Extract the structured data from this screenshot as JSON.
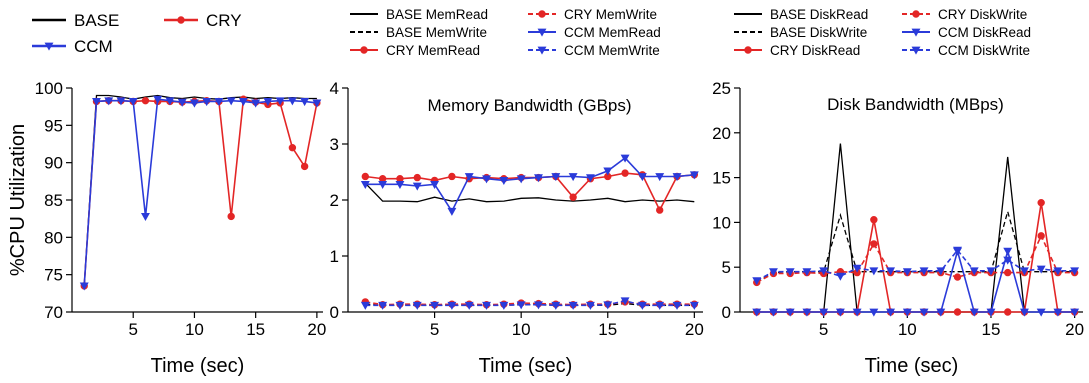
{
  "chart_data": [
    {
      "type": "line",
      "title": "",
      "xlabel": "Time (sec)",
      "ylabel": "%CPU Utilization",
      "xlim": [
        0,
        20.5
      ],
      "ylim": [
        70,
        100
      ],
      "xticks": [
        5,
        10,
        15,
        20
      ],
      "yticks": [
        70,
        75,
        80,
        85,
        90,
        95,
        100
      ],
      "legend_position": "top",
      "x": [
        1,
        2,
        3,
        4,
        5,
        6,
        7,
        8,
        9,
        10,
        11,
        12,
        13,
        14,
        15,
        16,
        17,
        18,
        19,
        20
      ],
      "series": [
        {
          "name": "BASE",
          "color": "#000000",
          "dash": "solid",
          "marker": "none",
          "values": [
            73.5,
            99,
            99,
            98.8,
            98.5,
            98.8,
            99,
            98.7,
            98.6,
            98.8,
            98.6,
            98.5,
            98.7,
            98.8,
            98.6,
            98.7,
            98.6,
            98.7,
            98.6,
            98.6
          ]
        },
        {
          "name": "CRY",
          "color": "#e32626",
          "dash": "solid",
          "marker": "circle",
          "values": [
            73.5,
            98.2,
            98.3,
            98.3,
            98.2,
            98.3,
            98.2,
            98.2,
            98.1,
            98.2,
            98.3,
            98.2,
            82.8,
            98.5,
            98.1,
            97.8,
            98,
            92,
            89.5,
            98
          ]
        },
        {
          "name": "CCM",
          "color": "#2b3bd9",
          "dash": "solid",
          "marker": "triangle",
          "values": [
            73.5,
            98.2,
            98.3,
            98.3,
            98.2,
            82.8,
            98.5,
            98.3,
            98.1,
            98,
            98.2,
            98.2,
            98.3,
            98.2,
            98,
            98.2,
            98.3,
            98.3,
            98.2,
            98
          ]
        }
      ]
    },
    {
      "type": "line",
      "title": "Memory Bandwidth (GBps)",
      "xlabel": "Time (sec)",
      "ylabel": "",
      "xlim": [
        0,
        20.5
      ],
      "ylim": [
        0,
        4
      ],
      "xticks": [
        5,
        10,
        15,
        20
      ],
      "yticks": [
        0,
        1,
        2,
        3,
        4
      ],
      "legend_position": "top",
      "x": [
        1,
        2,
        3,
        4,
        5,
        6,
        7,
        8,
        9,
        10,
        11,
        12,
        13,
        14,
        15,
        16,
        17,
        18,
        19,
        20
      ],
      "series": [
        {
          "name": "BASE MemRead",
          "color": "#000000",
          "dash": "solid",
          "marker": "none",
          "values": [
            2.3,
            1.98,
            1.98,
            1.97,
            2.05,
            1.98,
            2.02,
            1.97,
            1.98,
            2.03,
            2.04,
            2,
            1.98,
            2,
            2.03,
            1.97,
            2,
            1.98,
            2,
            1.97
          ]
        },
        {
          "name": "BASE MemWrite",
          "color": "#000000",
          "dash": "dashed",
          "marker": "none",
          "values": [
            0.14,
            0.12,
            0.12,
            0.12,
            0.12,
            0.12,
            0.12,
            0.12,
            0.12,
            0.13,
            0.13,
            0.12,
            0.12,
            0.12,
            0.12,
            0.15,
            0.12,
            0.12,
            0.12,
            0.12
          ]
        },
        {
          "name": "CRY MemRead",
          "color": "#e32626",
          "dash": "solid",
          "marker": "circle",
          "values": [
            2.42,
            2.38,
            2.38,
            2.4,
            2.35,
            2.42,
            2.38,
            2.4,
            2.38,
            2.4,
            2.4,
            2.42,
            2.05,
            2.38,
            2.42,
            2.48,
            2.45,
            1.82,
            2.42,
            2.45
          ]
        },
        {
          "name": "CRY MemWrite",
          "color": "#e32626",
          "dash": "dashed",
          "marker": "circle",
          "values": [
            0.18,
            0.13,
            0.14,
            0.14,
            0.13,
            0.14,
            0.14,
            0.13,
            0.14,
            0.16,
            0.15,
            0.14,
            0.13,
            0.14,
            0.14,
            0.18,
            0.14,
            0.14,
            0.14,
            0.14
          ]
        },
        {
          "name": "CCM MemRead",
          "color": "#2b3bd9",
          "dash": "solid",
          "marker": "triangle",
          "values": [
            2.28,
            2.28,
            2.28,
            2.25,
            2.28,
            1.8,
            2.42,
            2.38,
            2.35,
            2.38,
            2.4,
            2.42,
            2.42,
            2.4,
            2.52,
            2.75,
            2.42,
            2.42,
            2.42,
            2.45
          ]
        },
        {
          "name": "CCM MemWrite",
          "color": "#2b3bd9",
          "dash": "dashed",
          "marker": "triangle",
          "values": [
            0.12,
            0.12,
            0.12,
            0.12,
            0.12,
            0.12,
            0.12,
            0.12,
            0.12,
            0.13,
            0.13,
            0.12,
            0.12,
            0.12,
            0.13,
            0.2,
            0.12,
            0.12,
            0.12,
            0.12
          ]
        }
      ]
    },
    {
      "type": "line",
      "title": "Disk Bandwidth (MBps)",
      "xlabel": "Time (sec)",
      "ylabel": "",
      "xlim": [
        0,
        20.5
      ],
      "ylim": [
        0,
        25
      ],
      "xticks": [
        5,
        10,
        15,
        20
      ],
      "yticks": [
        0,
        5,
        10,
        15,
        20,
        25
      ],
      "legend_position": "top",
      "x": [
        1,
        2,
        3,
        4,
        5,
        6,
        7,
        8,
        9,
        10,
        11,
        12,
        13,
        14,
        15,
        16,
        17,
        18,
        19,
        20
      ],
      "series": [
        {
          "name": "BASE DiskRead",
          "color": "#000000",
          "dash": "solid",
          "marker": "none",
          "values": [
            0,
            0,
            0,
            0,
            0,
            18.8,
            0,
            0,
            0,
            0,
            0,
            0,
            0,
            0,
            0,
            17.3,
            0,
            0,
            0,
            0
          ]
        },
        {
          "name": "BASE DiskWrite",
          "color": "#000000",
          "dash": "dashed",
          "marker": "none",
          "values": [
            3.3,
            4.4,
            4.5,
            4.5,
            4.5,
            10.8,
            4.5,
            4.5,
            4.5,
            4.5,
            4.5,
            4.5,
            4.5,
            4.5,
            4.5,
            11.2,
            4.5,
            4.5,
            4.5,
            4.5
          ]
        },
        {
          "name": "CRY DiskRead",
          "color": "#e32626",
          "dash": "solid",
          "marker": "circle",
          "values": [
            0,
            0,
            0,
            0,
            0,
            0,
            0,
            10.3,
            0,
            0,
            0,
            0,
            0,
            0,
            0,
            0,
            0,
            12.2,
            0,
            0
          ]
        },
        {
          "name": "CRY DiskWrite",
          "color": "#e32626",
          "dash": "dashed",
          "marker": "circle",
          "values": [
            3.3,
            4.3,
            4.3,
            4.4,
            4.3,
            4.5,
            4.4,
            7.6,
            4.4,
            4.4,
            4.4,
            4.4,
            3.9,
            4.4,
            4.4,
            4.4,
            4.4,
            8.5,
            4.4,
            4.4
          ]
        },
        {
          "name": "CCM DiskRead",
          "color": "#2b3bd9",
          "dash": "solid",
          "marker": "triangle",
          "values": [
            0,
            0,
            0,
            0,
            0,
            0,
            0,
            0,
            0,
            0,
            0,
            0,
            6.8,
            0,
            0,
            6.8,
            0,
            0,
            0,
            0
          ]
        },
        {
          "name": "CCM DiskWrite",
          "color": "#2b3bd9",
          "dash": "dashed",
          "marker": "triangle",
          "values": [
            3.5,
            4.5,
            4.5,
            4.5,
            4.6,
            4,
            4.9,
            4.6,
            4.6,
            4.5,
            4.6,
            4.6,
            6.9,
            4.6,
            4.6,
            5.8,
            4.6,
            4.8,
            4.6,
            4.6
          ]
        }
      ]
    }
  ]
}
